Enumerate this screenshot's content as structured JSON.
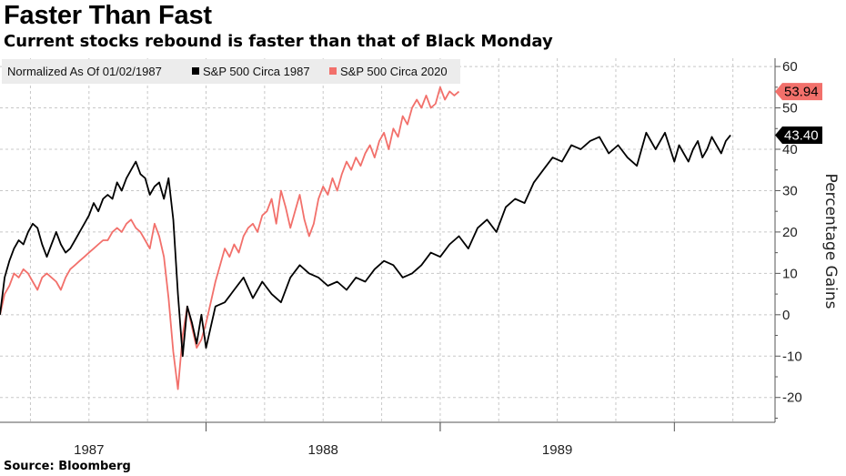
{
  "header": {
    "title": "Faster Than Fast",
    "subtitle": "Current stocks rebound is faster than that of Black Monday"
  },
  "footer": {
    "source_label": "Source:",
    "source_value": "Bloomberg"
  },
  "legend": {
    "note": "Normalized As Of 01/02/1987"
  },
  "colors": {
    "series_1987": "#000000",
    "series_2020": "#f2706b",
    "grid": "#cccccc"
  },
  "chart_data": {
    "type": "line",
    "title": "Faster Than Fast",
    "subtitle": "Current stocks rebound is faster than that of Black Monday",
    "xlabel": "",
    "ylabel": "Percentage Gains",
    "xlim": [
      1986.62,
      1989.93
    ],
    "ylim": [
      -26,
      62
    ],
    "y_axis_side": "right",
    "yticks": [
      60,
      50,
      40,
      30,
      20,
      10,
      0,
      -10,
      -20
    ],
    "ytick_labels": [
      "60",
      "50",
      "40",
      "30",
      "20",
      "10",
      "0",
      "-10",
      "-20"
    ],
    "xtick_labels": [
      {
        "x": 1987.0,
        "label": "1987"
      },
      {
        "x": 1988.0,
        "label": "1988"
      },
      {
        "x": 1989.0,
        "label": "1989"
      }
    ],
    "grid": true,
    "legend_position": "top-left",
    "series": [
      {
        "name": "S&P 500 Circa 1987",
        "color": "#000000",
        "last_value_label": "43.40",
        "x": [
          1986.62,
          1986.64,
          1986.66,
          1986.68,
          1986.7,
          1986.72,
          1986.74,
          1986.76,
          1986.78,
          1986.8,
          1986.82,
          1986.84,
          1986.86,
          1986.88,
          1986.9,
          1986.92,
          1986.94,
          1986.96,
          1986.98,
          1987.0,
          1987.02,
          1987.04,
          1987.06,
          1987.08,
          1987.1,
          1987.12,
          1987.14,
          1987.16,
          1987.18,
          1987.2,
          1987.22,
          1987.24,
          1987.26,
          1987.28,
          1987.3,
          1987.32,
          1987.34,
          1987.36,
          1987.38,
          1987.4,
          1987.42,
          1987.44,
          1987.46,
          1987.48,
          1987.5,
          1987.54,
          1987.58,
          1987.62,
          1987.66,
          1987.7,
          1987.74,
          1987.78,
          1987.82,
          1987.86,
          1987.9,
          1987.94,
          1987.98,
          1988.02,
          1988.06,
          1988.1,
          1988.14,
          1988.18,
          1988.22,
          1988.26,
          1988.3,
          1988.34,
          1988.38,
          1988.42,
          1988.46,
          1988.5,
          1988.54,
          1988.58,
          1988.62,
          1988.66,
          1988.7,
          1988.74,
          1988.78,
          1988.82,
          1988.86,
          1988.9,
          1988.94,
          1988.98,
          1989.02,
          1989.06,
          1989.1,
          1989.14,
          1989.18,
          1989.22,
          1989.26,
          1989.3,
          1989.34,
          1989.38,
          1989.42,
          1989.46,
          1989.5,
          1989.52,
          1989.54,
          1989.56,
          1989.58,
          1989.6,
          1989.62,
          1989.64,
          1989.66,
          1989.68,
          1989.7,
          1989.72,
          1989.74
        ],
        "values": [
          0,
          9,
          13,
          16,
          18,
          17,
          20,
          22,
          21,
          17,
          14,
          17,
          20,
          17,
          15,
          16,
          18,
          20,
          22,
          24,
          27,
          25,
          28,
          29,
          28,
          32,
          30,
          33,
          35,
          37,
          34,
          33,
          29,
          31,
          32,
          28,
          33,
          23,
          5,
          -10,
          2,
          -2,
          -7,
          0,
          -8,
          2,
          3,
          6,
          9,
          4,
          8,
          5,
          3,
          9,
          12,
          10,
          9,
          7,
          8,
          6,
          9,
          8,
          11,
          13,
          12,
          9,
          10,
          12,
          15,
          14,
          17,
          19,
          16,
          21,
          23,
          20,
          26,
          28,
          27,
          32,
          35,
          38,
          37,
          41,
          40,
          42,
          43,
          39,
          41,
          38,
          36,
          44,
          40,
          44,
          37,
          41,
          39,
          37,
          40,
          42,
          38,
          40,
          43,
          41,
          39,
          42,
          43.4
        ]
      },
      {
        "name": "S&P 500 Circa 2020",
        "color": "#f2706b",
        "last_value_label": "53.94",
        "x": [
          1986.62,
          1986.64,
          1986.66,
          1986.68,
          1986.7,
          1986.72,
          1986.74,
          1986.76,
          1986.78,
          1986.8,
          1986.82,
          1986.84,
          1986.86,
          1986.88,
          1986.9,
          1986.92,
          1986.94,
          1986.96,
          1986.98,
          1987.0,
          1987.02,
          1987.04,
          1987.06,
          1987.08,
          1987.1,
          1987.12,
          1987.14,
          1987.16,
          1987.18,
          1987.2,
          1987.22,
          1987.24,
          1987.26,
          1987.28,
          1987.3,
          1987.32,
          1987.34,
          1987.36,
          1987.38,
          1987.4,
          1987.42,
          1987.44,
          1987.46,
          1987.48,
          1987.5,
          1987.52,
          1987.54,
          1987.56,
          1987.58,
          1987.6,
          1987.62,
          1987.64,
          1987.66,
          1987.68,
          1987.7,
          1987.72,
          1987.74,
          1987.76,
          1987.78,
          1987.8,
          1987.82,
          1987.84,
          1987.86,
          1987.88,
          1987.9,
          1987.92,
          1987.94,
          1987.96,
          1987.98,
          1988.0,
          1988.02,
          1988.04,
          1988.06,
          1988.08,
          1988.1,
          1988.12,
          1988.14,
          1988.16,
          1988.18,
          1988.2,
          1988.22,
          1988.24,
          1988.26,
          1988.28,
          1988.3,
          1988.32,
          1988.34,
          1988.36,
          1988.38,
          1988.4,
          1988.42,
          1988.44,
          1988.46,
          1988.48,
          1988.5,
          1988.52,
          1988.54,
          1988.56,
          1988.58
        ],
        "values": [
          0,
          5,
          7,
          10,
          9,
          11,
          10,
          8,
          6,
          9,
          10,
          9,
          8,
          6,
          9,
          11,
          12,
          13,
          14,
          15,
          16,
          17,
          18,
          18,
          20,
          21,
          20,
          22,
          23,
          21,
          20,
          18,
          16,
          22,
          19,
          14,
          4,
          -9,
          -18,
          -5,
          2,
          -3,
          -8,
          -6,
          -2,
          3,
          8,
          12,
          16,
          14,
          17,
          15,
          19,
          21,
          22,
          20,
          24,
          25,
          28,
          22,
          30,
          26,
          21,
          25,
          29,
          23,
          19,
          22,
          28,
          31,
          29,
          33,
          30,
          34,
          37,
          35,
          38,
          36,
          39,
          41,
          38,
          42,
          44,
          40,
          45,
          43,
          48,
          46,
          50,
          52,
          50,
          53,
          50,
          51,
          55,
          52,
          54,
          53,
          53.94
        ]
      }
    ]
  }
}
